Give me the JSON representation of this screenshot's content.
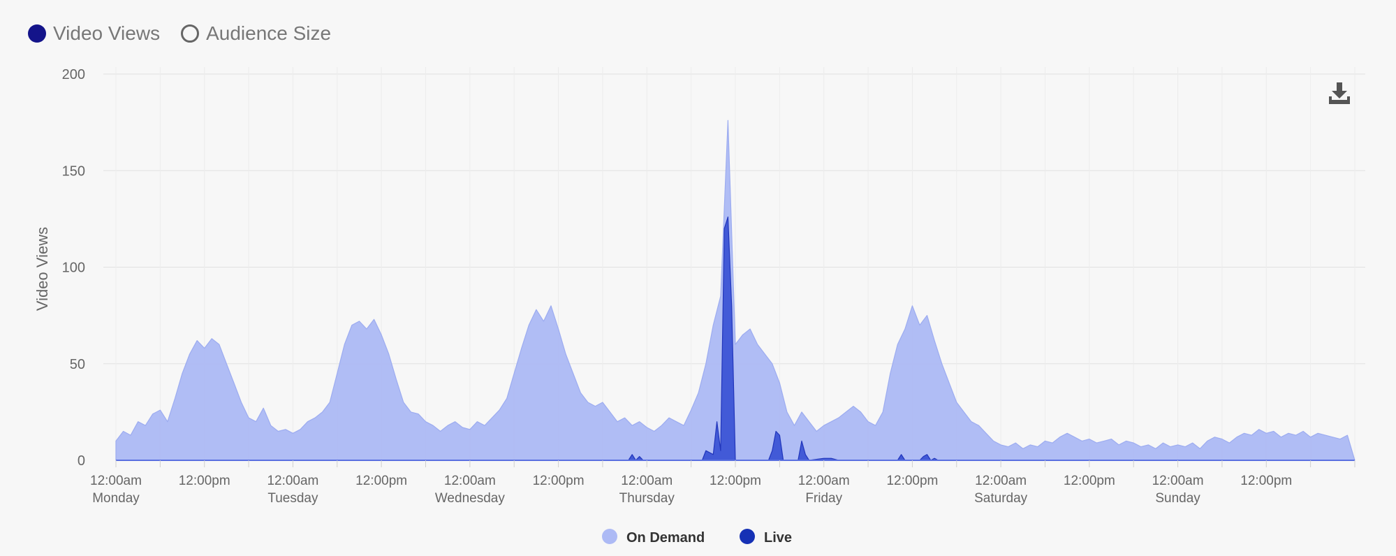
{
  "toggles": [
    {
      "label": "Video Views",
      "selected": true
    },
    {
      "label": "Audience Size",
      "selected": false
    }
  ],
  "colors": {
    "on_demand": "#adbaf5",
    "on_demand_line": "#98a8f0",
    "live": "#3d55d6",
    "live_line": "#1a2fb8",
    "legend_live": "#1631b5",
    "grid": "#e2e2e2",
    "axis": "#5a70e0"
  },
  "chart_data": {
    "type": "area",
    "ylabel": "Video Views",
    "ylim": [
      0,
      200
    ],
    "yticks": [
      0,
      50,
      100,
      150,
      200
    ],
    "xticks": [
      {
        "t": 0,
        "time": "12:00am",
        "day": "Monday"
      },
      {
        "t": 12,
        "time": "12:00pm",
        "day": ""
      },
      {
        "t": 24,
        "time": "12:00am",
        "day": "Tuesday"
      },
      {
        "t": 36,
        "time": "12:00pm",
        "day": ""
      },
      {
        "t": 48,
        "time": "12:00am",
        "day": "Wednesday"
      },
      {
        "t": 60,
        "time": "12:00pm",
        "day": ""
      },
      {
        "t": 72,
        "time": "12:00am",
        "day": "Thursday"
      },
      {
        "t": 84,
        "time": "12:00pm",
        "day": ""
      },
      {
        "t": 96,
        "time": "12:00am",
        "day": "Friday"
      },
      {
        "t": 108,
        "time": "12:00pm",
        "day": ""
      },
      {
        "t": 120,
        "time": "12:00am",
        "day": "Saturday"
      },
      {
        "t": 132,
        "time": "12:00pm",
        "day": ""
      },
      {
        "t": 144,
        "time": "12:00am",
        "day": "Sunday"
      },
      {
        "t": 156,
        "time": "12:00pm",
        "day": ""
      }
    ],
    "xlim": [
      0,
      168
    ],
    "series": [
      {
        "name": "On Demand",
        "points": [
          [
            0,
            10
          ],
          [
            1,
            15
          ],
          [
            2,
            13
          ],
          [
            3,
            20
          ],
          [
            4,
            18
          ],
          [
            5,
            24
          ],
          [
            6,
            26
          ],
          [
            7,
            20
          ],
          [
            8,
            32
          ],
          [
            9,
            45
          ],
          [
            10,
            55
          ],
          [
            11,
            62
          ],
          [
            12,
            58
          ],
          [
            13,
            63
          ],
          [
            14,
            60
          ],
          [
            15,
            50
          ],
          [
            16,
            40
          ],
          [
            17,
            30
          ],
          [
            18,
            22
          ],
          [
            19,
            20
          ],
          [
            20,
            27
          ],
          [
            21,
            18
          ],
          [
            22,
            15
          ],
          [
            23,
            16
          ],
          [
            24,
            14
          ],
          [
            25,
            16
          ],
          [
            26,
            20
          ],
          [
            27,
            22
          ],
          [
            28,
            25
          ],
          [
            29,
            30
          ],
          [
            30,
            45
          ],
          [
            31,
            60
          ],
          [
            32,
            70
          ],
          [
            33,
            72
          ],
          [
            34,
            68
          ],
          [
            35,
            73
          ],
          [
            36,
            65
          ],
          [
            37,
            55
          ],
          [
            38,
            42
          ],
          [
            39,
            30
          ],
          [
            40,
            25
          ],
          [
            41,
            24
          ],
          [
            42,
            20
          ],
          [
            43,
            18
          ],
          [
            44,
            15
          ],
          [
            45,
            18
          ],
          [
            46,
            20
          ],
          [
            47,
            17
          ],
          [
            48,
            16
          ],
          [
            49,
            20
          ],
          [
            50,
            18
          ],
          [
            51,
            22
          ],
          [
            52,
            26
          ],
          [
            53,
            32
          ],
          [
            54,
            45
          ],
          [
            55,
            58
          ],
          [
            56,
            70
          ],
          [
            57,
            78
          ],
          [
            58,
            72
          ],
          [
            59,
            80
          ],
          [
            60,
            68
          ],
          [
            61,
            55
          ],
          [
            62,
            45
          ],
          [
            63,
            35
          ],
          [
            64,
            30
          ],
          [
            65,
            28
          ],
          [
            66,
            30
          ],
          [
            67,
            25
          ],
          [
            68,
            20
          ],
          [
            69,
            22
          ],
          [
            70,
            18
          ],
          [
            71,
            20
          ],
          [
            72,
            17
          ],
          [
            73,
            15
          ],
          [
            74,
            18
          ],
          [
            75,
            22
          ],
          [
            76,
            20
          ],
          [
            77,
            18
          ],
          [
            78,
            26
          ],
          [
            79,
            35
          ],
          [
            80,
            50
          ],
          [
            81,
            70
          ],
          [
            82,
            85
          ],
          [
            83,
            176
          ],
          [
            84,
            60
          ],
          [
            85,
            65
          ],
          [
            86,
            68
          ],
          [
            87,
            60
          ],
          [
            88,
            55
          ],
          [
            89,
            50
          ],
          [
            90,
            40
          ],
          [
            91,
            25
          ],
          [
            92,
            18
          ],
          [
            93,
            25
          ],
          [
            94,
            20
          ],
          [
            95,
            15
          ],
          [
            96,
            18
          ],
          [
            97,
            20
          ],
          [
            98,
            22
          ],
          [
            99,
            25
          ],
          [
            100,
            28
          ],
          [
            101,
            25
          ],
          [
            102,
            20
          ],
          [
            103,
            18
          ],
          [
            104,
            25
          ],
          [
            105,
            45
          ],
          [
            106,
            60
          ],
          [
            107,
            68
          ],
          [
            108,
            80
          ],
          [
            109,
            70
          ],
          [
            110,
            75
          ],
          [
            111,
            62
          ],
          [
            112,
            50
          ],
          [
            113,
            40
          ],
          [
            114,
            30
          ],
          [
            115,
            25
          ],
          [
            116,
            20
          ],
          [
            117,
            18
          ],
          [
            118,
            14
          ],
          [
            119,
            10
          ],
          [
            120,
            8
          ],
          [
            121,
            7
          ],
          [
            122,
            9
          ],
          [
            123,
            6
          ],
          [
            124,
            8
          ],
          [
            125,
            7
          ],
          [
            126,
            10
          ],
          [
            127,
            9
          ],
          [
            128,
            12
          ],
          [
            129,
            14
          ],
          [
            130,
            12
          ],
          [
            131,
            10
          ],
          [
            132,
            11
          ],
          [
            133,
            9
          ],
          [
            134,
            10
          ],
          [
            135,
            11
          ],
          [
            136,
            8
          ],
          [
            137,
            10
          ],
          [
            138,
            9
          ],
          [
            139,
            7
          ],
          [
            140,
            8
          ],
          [
            141,
            6
          ],
          [
            142,
            9
          ],
          [
            143,
            7
          ],
          [
            144,
            8
          ],
          [
            145,
            7
          ],
          [
            146,
            9
          ],
          [
            147,
            6
          ],
          [
            148,
            10
          ],
          [
            149,
            12
          ],
          [
            150,
            11
          ],
          [
            151,
            9
          ],
          [
            152,
            12
          ],
          [
            153,
            14
          ],
          [
            154,
            13
          ],
          [
            155,
            16
          ],
          [
            156,
            14
          ],
          [
            157,
            15
          ],
          [
            158,
            12
          ],
          [
            159,
            14
          ],
          [
            160,
            13
          ],
          [
            161,
            15
          ],
          [
            162,
            12
          ],
          [
            163,
            14
          ],
          [
            164,
            13
          ],
          [
            165,
            12
          ],
          [
            166,
            11
          ],
          [
            167,
            13
          ],
          [
            168,
            0
          ]
        ]
      },
      {
        "name": "Live",
        "points": [
          [
            69.5,
            0
          ],
          [
            70,
            3
          ],
          [
            70.5,
            0
          ],
          [
            71,
            2
          ],
          [
            71.5,
            0
          ],
          [
            79.5,
            0
          ],
          [
            80,
            5
          ],
          [
            80.5,
            4
          ],
          [
            81,
            3
          ],
          [
            81.5,
            20
          ],
          [
            82,
            5
          ],
          [
            82.5,
            120
          ],
          [
            83,
            126
          ],
          [
            83.5,
            80
          ],
          [
            84,
            0
          ],
          [
            88.5,
            0
          ],
          [
            89,
            5
          ],
          [
            89.5,
            15
          ],
          [
            90,
            13
          ],
          [
            90.5,
            0
          ],
          [
            92.5,
            0
          ],
          [
            93,
            10
          ],
          [
            93.5,
            3
          ],
          [
            94,
            0
          ],
          [
            96,
            1
          ],
          [
            97,
            1
          ],
          [
            98,
            0
          ],
          [
            106,
            0
          ],
          [
            106.5,
            3
          ],
          [
            107,
            0
          ],
          [
            109,
            0
          ],
          [
            109.5,
            2
          ],
          [
            110,
            3
          ],
          [
            110.5,
            0
          ],
          [
            111,
            1
          ],
          [
            111.5,
            0
          ]
        ]
      }
    ],
    "legend": {
      "placement": "bottom-center",
      "items": [
        "On Demand",
        "Live"
      ]
    }
  }
}
